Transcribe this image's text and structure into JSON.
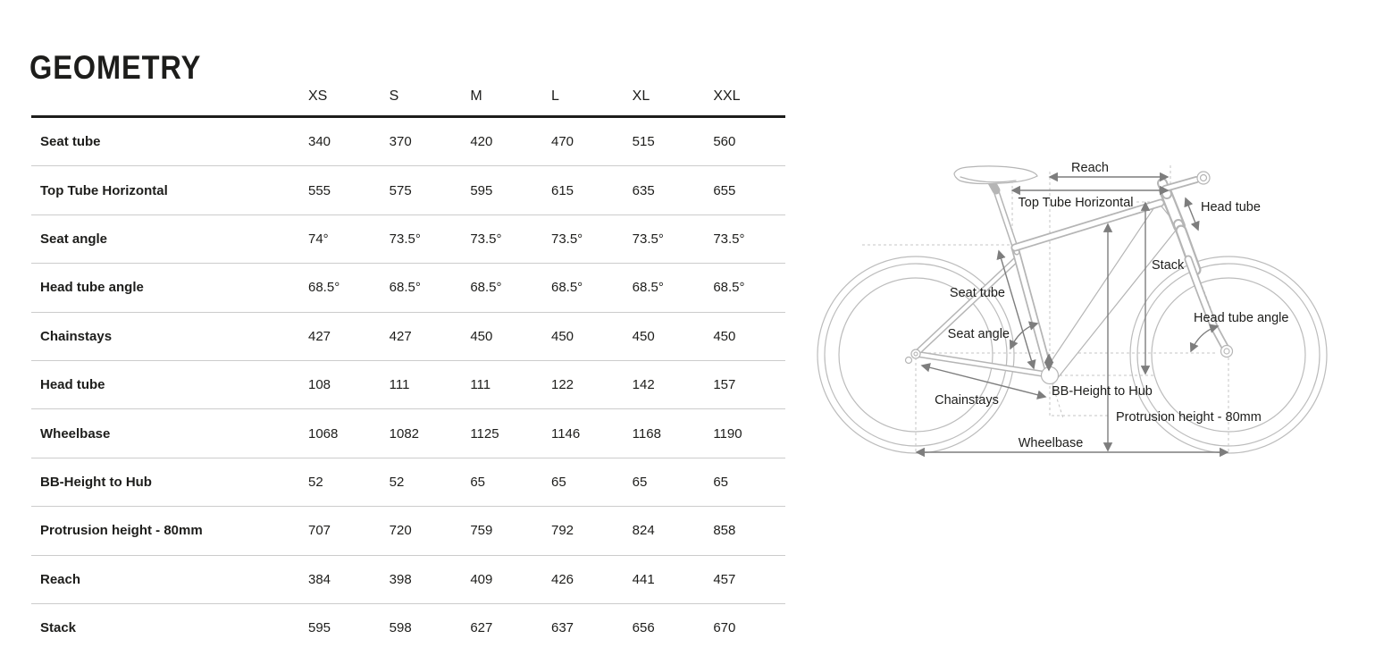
{
  "page": {
    "title": "GEOMETRY"
  },
  "table": {
    "size_headers": [
      "XS",
      "S",
      "M",
      "L",
      "XL",
      "XXL"
    ],
    "rows": [
      {
        "label": "Seat tube",
        "values": [
          "340",
          "370",
          "420",
          "470",
          "515",
          "560"
        ]
      },
      {
        "label": "Top Tube Horizontal",
        "values": [
          "555",
          "575",
          "595",
          "615",
          "635",
          "655"
        ]
      },
      {
        "label": "Seat angle",
        "values": [
          "74°",
          "73.5°",
          "73.5°",
          "73.5°",
          "73.5°",
          "73.5°"
        ]
      },
      {
        "label": "Head tube angle",
        "values": [
          "68.5°",
          "68.5°",
          "68.5°",
          "68.5°",
          "68.5°",
          "68.5°"
        ]
      },
      {
        "label": "Chainstays",
        "values": [
          "427",
          "427",
          "450",
          "450",
          "450",
          "450"
        ]
      },
      {
        "label": "Head tube",
        "values": [
          "108",
          "111",
          "111",
          "122",
          "142",
          "157"
        ]
      },
      {
        "label": "Wheelbase",
        "values": [
          "1068",
          "1082",
          "1125",
          "1146",
          "1168",
          "1190"
        ]
      },
      {
        "label": "BB-Height to Hub",
        "values": [
          "52",
          "52",
          "65",
          "65",
          "65",
          "65"
        ]
      },
      {
        "label": "Protrusion height - 80mm",
        "values": [
          "707",
          "720",
          "759",
          "792",
          "824",
          "858"
        ]
      },
      {
        "label": "Reach",
        "values": [
          "384",
          "398",
          "409",
          "426",
          "441",
          "457"
        ]
      },
      {
        "label": "Stack",
        "values": [
          "595",
          "598",
          "627",
          "637",
          "656",
          "670"
        ]
      }
    ]
  },
  "diagram": {
    "labels": {
      "reach": "Reach",
      "top_tube_horizontal": "Top Tube Horizontal",
      "head_tube": "Head tube",
      "stack": "Stack",
      "seat_tube": "Seat tube",
      "seat_angle": "Seat angle",
      "head_tube_angle": "Head tube angle",
      "chainstays": "Chainstays",
      "bb_height_to_hub": "BB-Height to Hub",
      "protrusion_height": "Protrusion height - 80mm",
      "wheelbase": "Wheelbase"
    }
  },
  "colors": {
    "text": "#1d1d1b",
    "header_rule": "#1d1d1b",
    "table_rule": "#cccccc",
    "bike_outline": "#b5b5b5",
    "dimension_lines": "#7d7d7d",
    "dashed_guides": "#c6c6c6"
  }
}
